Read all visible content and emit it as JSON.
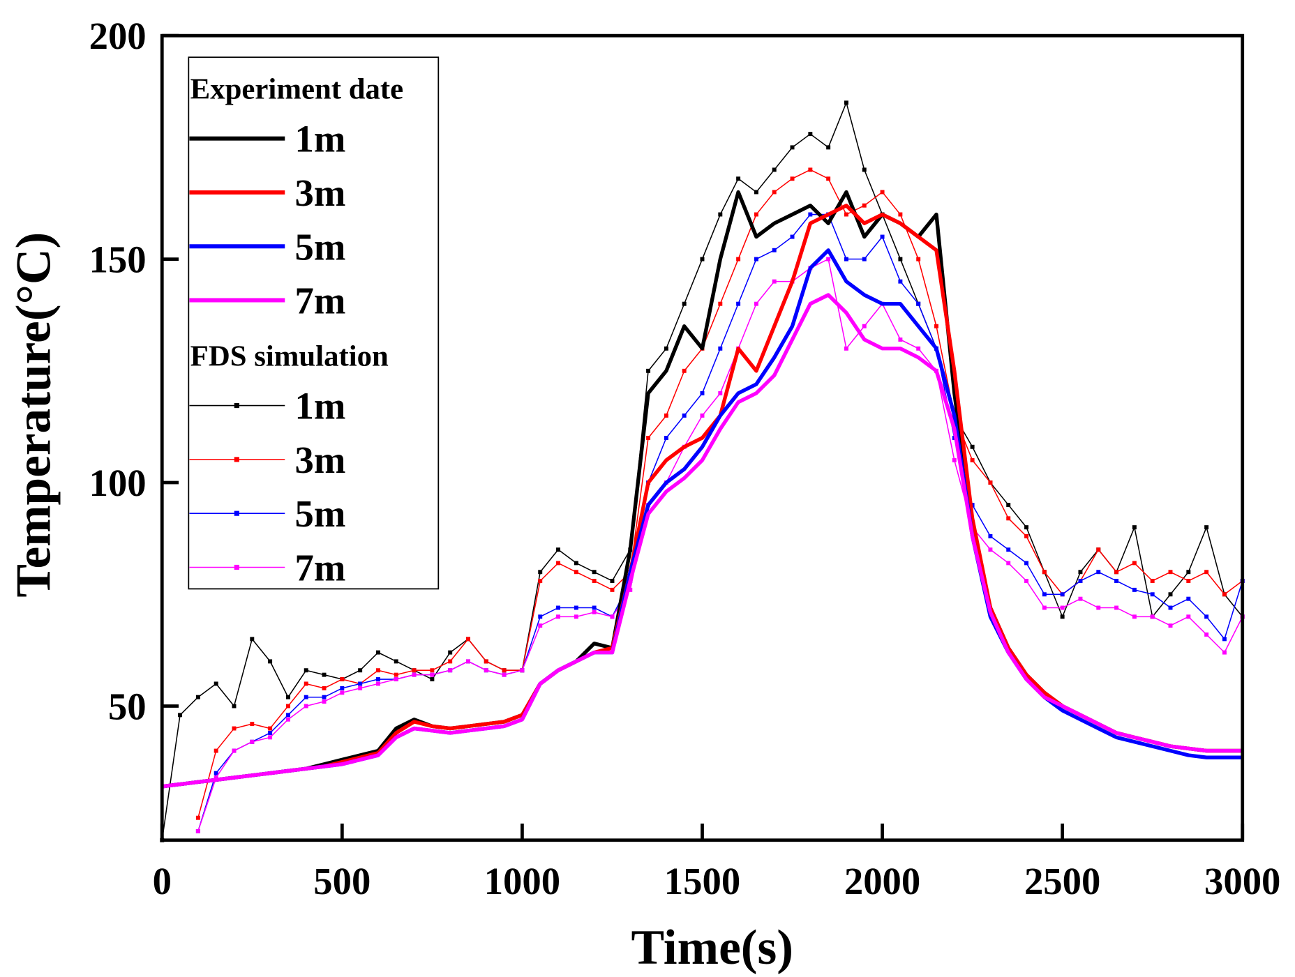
{
  "chart_data": {
    "type": "line",
    "xlabel": "Time(s)",
    "ylabel": "Temperature(°C)",
    "xlim": [
      0,
      3000
    ],
    "ylim": [
      20,
      200
    ],
    "xticks": [
      0,
      500,
      1000,
      1500,
      2000,
      2500,
      3000
    ],
    "yticks": [
      50,
      100,
      150,
      200
    ],
    "grid": false,
    "legend_position": "top-left",
    "legend_groups": [
      "Experiment date",
      "FDS simulation"
    ],
    "x": [
      0,
      50,
      100,
      150,
      200,
      250,
      300,
      350,
      400,
      450,
      500,
      550,
      600,
      650,
      700,
      750,
      800,
      850,
      900,
      950,
      1000,
      1050,
      1100,
      1150,
      1200,
      1250,
      1300,
      1350,
      1400,
      1450,
      1500,
      1550,
      1600,
      1650,
      1700,
      1750,
      1800,
      1850,
      1900,
      1950,
      2000,
      2050,
      2100,
      2150,
      2200,
      2250,
      2300,
      2350,
      2400,
      2450,
      2500,
      2550,
      2600,
      2650,
      2700,
      2750,
      2800,
      2850,
      2900,
      2950,
      3000
    ],
    "series": [
      {
        "name": "1m",
        "group": "Experiment date",
        "color": "#000000",
        "style": "thick",
        "values": [
          32,
          32.5,
          33,
          33.5,
          34,
          34.5,
          35,
          35.5,
          36,
          37,
          38,
          39,
          40,
          45,
          47,
          45.5,
          45,
          45.5,
          46,
          46.5,
          48,
          55,
          58,
          60,
          64,
          63,
          85,
          120,
          125,
          135,
          130,
          150,
          165,
          155,
          158,
          160,
          162,
          158,
          165,
          155,
          160,
          158,
          155,
          160,
          120,
          90,
          72,
          63,
          57,
          53,
          50,
          48,
          46,
          44,
          43,
          42,
          41,
          40.5,
          40,
          40,
          40
        ]
      },
      {
        "name": "3m",
        "group": "Experiment date",
        "color": "#ff0000",
        "style": "thick",
        "values": [
          32,
          32.5,
          33,
          33.5,
          34,
          34.5,
          35,
          35.5,
          36,
          36.5,
          37.5,
          38.5,
          39.5,
          44,
          46.5,
          45.5,
          45,
          45.5,
          46,
          46.5,
          48,
          55,
          58,
          60,
          62,
          63,
          80,
          100,
          105,
          108,
          110,
          115,
          130,
          125,
          135,
          145,
          158,
          160,
          162,
          158,
          160,
          158,
          155,
          152,
          125,
          92,
          72,
          63,
          57,
          53,
          50,
          48,
          46,
          44,
          43,
          42,
          41,
          40.5,
          40,
          40,
          40
        ]
      },
      {
        "name": "5m",
        "group": "Experiment date",
        "color": "#0000ff",
        "style": "thick",
        "values": [
          32,
          32.5,
          33,
          33.5,
          34,
          34.5,
          35,
          35.5,
          36,
          36.5,
          37,
          38,
          39,
          43,
          45,
          44.5,
          44,
          44.5,
          45,
          45.5,
          47,
          55,
          58,
          60,
          62,
          62,
          80,
          95,
          100,
          103,
          108,
          115,
          120,
          122,
          128,
          135,
          148,
          152,
          145,
          142,
          140,
          140,
          135,
          130,
          115,
          88,
          70,
          62,
          56,
          52,
          49,
          47,
          45,
          43,
          42,
          41,
          40,
          39,
          38.5,
          38.5,
          38.5
        ]
      },
      {
        "name": "7m",
        "group": "Experiment date",
        "color": "#ff00ff",
        "style": "thick",
        "values": [
          32,
          32.5,
          33,
          33.5,
          34,
          34.5,
          35,
          35.5,
          36,
          36.5,
          37,
          38,
          39,
          43,
          45,
          44.5,
          44,
          44.5,
          45,
          45.5,
          47,
          55,
          58,
          60,
          62,
          62,
          78,
          93,
          98,
          101,
          105,
          112,
          118,
          120,
          124,
          132,
          140,
          142,
          138,
          132,
          130,
          130,
          128,
          125,
          112,
          88,
          71,
          62,
          56,
          52,
          50,
          48,
          46,
          44,
          43,
          42,
          41,
          40.5,
          40,
          40,
          40
        ]
      },
      {
        "name": "1m",
        "group": "FDS simulation",
        "color": "#000000",
        "style": "thin",
        "values": [
          20,
          48,
          52,
          55,
          50,
          65,
          60,
          52,
          58,
          57,
          56,
          58,
          62,
          60,
          58,
          56,
          62,
          65,
          60,
          58,
          58,
          80,
          85,
          82,
          80,
          78,
          85,
          125,
          130,
          140,
          150,
          160,
          168,
          165,
          170,
          175,
          178,
          175,
          185,
          170,
          160,
          150,
          140,
          130,
          115,
          108,
          100,
          95,
          90,
          80,
          70,
          80,
          85,
          80,
          90,
          70,
          75,
          80,
          90,
          75,
          70
        ]
      },
      {
        "name": "3m",
        "group": "FDS simulation",
        "color": "#ff0000",
        "style": "thin",
        "values": [
          null,
          null,
          25,
          40,
          45,
          46,
          45,
          50,
          55,
          54,
          56,
          55,
          58,
          57,
          58,
          58,
          60,
          65,
          60,
          58,
          58,
          78,
          82,
          80,
          78,
          76,
          80,
          110,
          115,
          125,
          130,
          140,
          150,
          160,
          165,
          168,
          170,
          168,
          160,
          162,
          165,
          160,
          150,
          135,
          115,
          105,
          100,
          92,
          88,
          80,
          75,
          78,
          85,
          80,
          82,
          78,
          80,
          78,
          80,
          75,
          78
        ]
      },
      {
        "name": "5m",
        "group": "FDS simulation",
        "color": "#0000ff",
        "style": "thin",
        "values": [
          null,
          null,
          22,
          35,
          40,
          42,
          44,
          48,
          52,
          52,
          54,
          55,
          56,
          56,
          57,
          57,
          58,
          60,
          58,
          57,
          58,
          70,
          72,
          72,
          72,
          70,
          78,
          100,
          110,
          115,
          120,
          130,
          140,
          150,
          152,
          155,
          160,
          160,
          150,
          150,
          155,
          145,
          140,
          130,
          110,
          95,
          88,
          85,
          82,
          75,
          75,
          78,
          80,
          78,
          76,
          75,
          72,
          74,
          70,
          65,
          78
        ]
      },
      {
        "name": "7m",
        "group": "FDS simulation",
        "color": "#ff00ff",
        "style": "thin",
        "values": [
          null,
          null,
          22,
          34,
          40,
          42,
          43,
          47,
          50,
          51,
          53,
          54,
          55,
          56,
          57,
          57,
          58,
          60,
          58,
          57,
          58,
          68,
          70,
          70,
          71,
          70,
          76,
          95,
          100,
          108,
          115,
          120,
          130,
          140,
          145,
          145,
          148,
          150,
          130,
          135,
          140,
          132,
          130,
          125,
          105,
          90,
          85,
          82,
          78,
          72,
          72,
          74,
          72,
          72,
          70,
          70,
          68,
          70,
          66,
          62,
          70
        ]
      }
    ]
  }
}
